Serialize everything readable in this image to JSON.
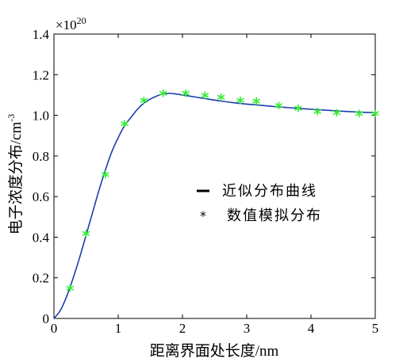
{
  "chart_data": {
    "type": "line",
    "multiplier": "×10",
    "multiplier_exp": "20",
    "xlabel": "距离界面处长度/nm",
    "ylabel": "电子浓度分布/cm",
    "ylabel_exp": "-3",
    "xlim": [
      0,
      5
    ],
    "ylim": [
      0,
      1.4
    ],
    "xticks": [
      "0",
      "1",
      "2",
      "3",
      "4",
      "5"
    ],
    "yticks": [
      "0",
      "0.2",
      "0.4",
      "0.6",
      "0.8",
      "1.0",
      "1.2",
      "1.4"
    ],
    "grid": false,
    "legend_position": "center-right",
    "colors": {
      "curve": "#1a3fb0",
      "markers": "#33ee33"
    },
    "series": [
      {
        "name": "近似分布曲线",
        "style": "line",
        "x": [
          0,
          0.1,
          0.2,
          0.3,
          0.4,
          0.5,
          0.6,
          0.7,
          0.8,
          0.9,
          1.0,
          1.1,
          1.2,
          1.3,
          1.4,
          1.5,
          1.6,
          1.7,
          1.8,
          1.9,
          2.0,
          2.2,
          2.4,
          2.6,
          2.8,
          3.0,
          3.2,
          3.4,
          3.6,
          3.8,
          4.0,
          4.2,
          4.4,
          4.6,
          4.8,
          5.0
        ],
        "y": [
          0,
          0.04,
          0.11,
          0.2,
          0.3,
          0.41,
          0.52,
          0.63,
          0.73,
          0.82,
          0.89,
          0.95,
          0.99,
          1.03,
          1.06,
          1.08,
          1.095,
          1.105,
          1.108,
          1.105,
          1.1,
          1.09,
          1.08,
          1.07,
          1.062,
          1.055,
          1.05,
          1.044,
          1.039,
          1.034,
          1.03,
          1.026,
          1.022,
          1.018,
          1.015,
          1.013
        ]
      },
      {
        "name": "数值模拟分布",
        "style": "marker",
        "x": [
          0.25,
          0.5,
          0.8,
          1.1,
          1.4,
          1.7,
          2.05,
          2.35,
          2.6,
          2.9,
          3.15,
          3.5,
          3.8,
          4.1,
          4.4,
          4.75,
          5.0
        ],
        "y": [
          0.14,
          0.41,
          0.7,
          0.95,
          1.065,
          1.1,
          1.1,
          1.09,
          1.08,
          1.065,
          1.06,
          1.04,
          1.025,
          1.01,
          1.005,
          1.0,
          1.0
        ]
      }
    ]
  }
}
